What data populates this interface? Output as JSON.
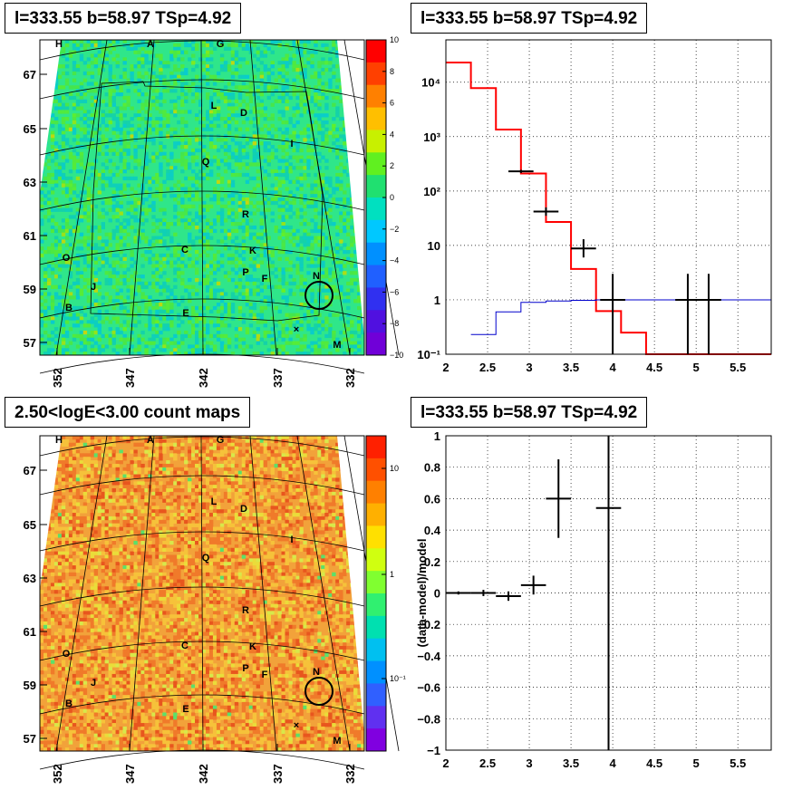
{
  "panels": {
    "tl_title": "l=333.55 b=58.97 TSp=4.92",
    "tr_title": "l=333.55 b=58.97 TSp=4.92",
    "bl_title": "2.50<logE<3.00 count maps",
    "br_title": "l=333.55 b=58.97 TSp=4.92"
  },
  "sky_maps": {
    "lat_ticks": [
      "67",
      "65",
      "63",
      "61",
      "59",
      "57"
    ],
    "lon_ticks": [
      "352",
      "347",
      "342",
      "337",
      "332"
    ],
    "sources": [
      "H",
      "A",
      "G",
      "L",
      "D",
      "I",
      "Q",
      "R",
      "C",
      "K",
      "O",
      "J",
      "P",
      "F",
      "N",
      "B",
      "E",
      "M"
    ],
    "residual_colorbar": [
      "10",
      "8",
      "6",
      "4",
      "2",
      "0",
      "−2",
      "−4",
      "−6",
      "−8",
      "−10"
    ],
    "count_colorbar": [
      "10",
      "1",
      "10⁻¹"
    ]
  },
  "chart_data": [
    {
      "type": "line",
      "name": "spectrum",
      "yscale": "log",
      "xlim": [
        2,
        5.9
      ],
      "ylim": [
        0.1,
        60000
      ],
      "x_ticks": [
        "2",
        "2.5",
        "3",
        "3.5",
        "4",
        "4.5",
        "5",
        "5.5"
      ],
      "y_ticks": [
        "10⁻¹",
        "1",
        "10",
        "10²",
        "10³",
        "10⁴"
      ],
      "series": [
        {
          "role": "model-total",
          "color": "#ff0000",
          "bins": [
            [
              2.0,
              2.3,
              23000
            ],
            [
              2.3,
              2.6,
              7800
            ],
            [
              2.6,
              2.9,
              1350
            ],
            [
              2.9,
              3.2,
              210
            ],
            [
              3.2,
              3.5,
              27
            ],
            [
              3.5,
              3.8,
              3.7
            ],
            [
              3.8,
              4.1,
              0.62
            ],
            [
              4.1,
              4.4,
              0.25
            ],
            [
              4.4,
              5.9,
              0.1
            ]
          ]
        },
        {
          "role": "model-source",
          "color": "#0000cc",
          "bins": [
            [
              2.3,
              2.6,
              0.23
            ],
            [
              2.6,
              2.9,
              0.6
            ],
            [
              2.9,
              3.2,
              0.9
            ],
            [
              3.2,
              3.5,
              0.95
            ],
            [
              3.5,
              3.8,
              0.98
            ],
            [
              3.8,
              5.9,
              1.0
            ]
          ]
        },
        {
          "role": "data",
          "color": "#000000",
          "points": [
            {
              "x": 2.9,
              "xerr": 0.15,
              "y": 230,
              "ylo": 215,
              "yhi": 245
            },
            {
              "x": 3.2,
              "xerr": 0.15,
              "y": 42,
              "ylo": 35,
              "yhi": 50
            },
            {
              "x": 3.65,
              "xerr": 0.15,
              "y": 8.8,
              "ylo": 6,
              "yhi": 13
            },
            {
              "x": 4.0,
              "xerr": 0.15,
              "y": 1.0,
              "ylo": 0.1,
              "yhi": 3
            },
            {
              "x": 4.9,
              "xerr": 0.15,
              "y": 1.0,
              "ylo": 0.1,
              "yhi": 3
            },
            {
              "x": 5.15,
              "xerr": 0.15,
              "y": 1.0,
              "ylo": 0.1,
              "yhi": 3
            }
          ]
        }
      ]
    },
    {
      "type": "scatter",
      "name": "residuals",
      "ylabel": "(data-model)/model",
      "xlim": [
        2,
        5.9
      ],
      "ylim": [
        -1,
        1
      ],
      "x_ticks": [
        "2",
        "2.5",
        "3",
        "3.5",
        "4",
        "4.5",
        "5",
        "5.5"
      ],
      "y_ticks": [
        "1",
        "0.8",
        "0.6",
        "0.4",
        "0.2",
        "0",
        "−0.2",
        "−0.4",
        "−0.6",
        "−0.8",
        "−1"
      ],
      "points": [
        {
          "x": 2.15,
          "xerr": 0.15,
          "y": 0.0,
          "yerr": 0.01
        },
        {
          "x": 2.45,
          "xerr": 0.15,
          "y": 0.0,
          "yerr": 0.02
        },
        {
          "x": 2.75,
          "xerr": 0.15,
          "y": -0.02,
          "yerr": 0.03
        },
        {
          "x": 3.05,
          "xerr": 0.15,
          "y": 0.05,
          "yerr": 0.06
        },
        {
          "x": 3.35,
          "xerr": 0.15,
          "y": 0.6,
          "yerr": 0.25
        },
        {
          "x": 3.95,
          "xerr": 0.15,
          "y": 0.54,
          "yerr": 1.6
        }
      ]
    }
  ]
}
